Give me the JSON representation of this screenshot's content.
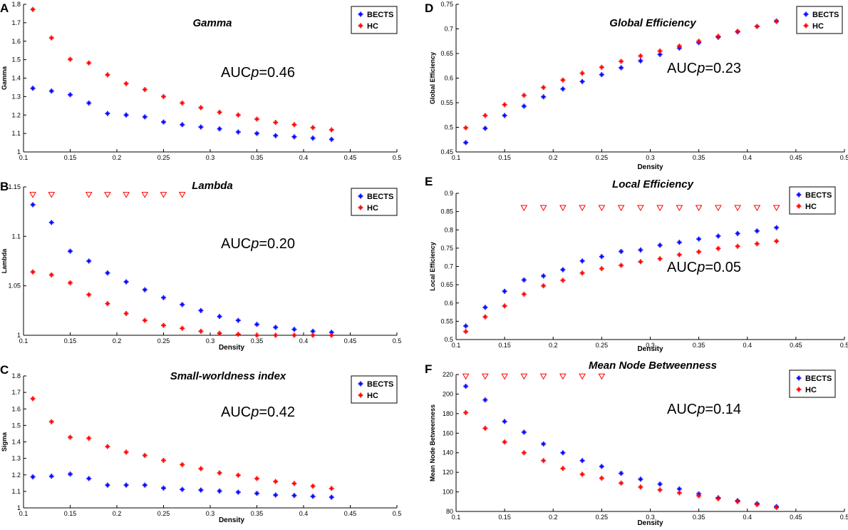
{
  "figure": {
    "colors": {
      "becats": "#0000ff",
      "hc": "#ff0000",
      "axis": "#000000",
      "legend_border": "#000000"
    },
    "icon_names": {
      "series_marker": "plus-star-marker",
      "significance_marker": "down-triangle-marker"
    }
  },
  "chart_data": [
    {
      "panel_letter": "A",
      "type": "scatter",
      "title": "Gamma",
      "xlabel": "",
      "ylabel": "Gamma",
      "xlim": [
        0.1,
        0.5
      ],
      "ylim": [
        1.0,
        1.8
      ],
      "xticks": [
        "0.1",
        "0.15",
        "0.2",
        "0.25",
        "0.3",
        "0.35",
        "0.4",
        "0.45",
        "0.5"
      ],
      "yticks": [
        "1",
        "1.1",
        "1.2",
        "1.3",
        "1.4",
        "1.5",
        "1.6",
        "1.7",
        "1.8"
      ],
      "annotation": {
        "prefix": "AUC",
        "italic": "p",
        "suffix": "=0.46"
      },
      "legend": [
        "BECTS",
        "HC"
      ],
      "x": [
        0.11,
        0.13,
        0.15,
        0.17,
        0.19,
        0.21,
        0.23,
        0.25,
        0.27,
        0.29,
        0.31,
        0.33,
        0.35,
        0.37,
        0.39,
        0.41,
        0.43
      ],
      "series": [
        {
          "name": "BECTS",
          "values": [
            1.345,
            1.33,
            1.31,
            1.265,
            1.208,
            1.2,
            1.19,
            1.162,
            1.148,
            1.135,
            1.125,
            1.108,
            1.1,
            1.088,
            1.082,
            1.075,
            1.068
          ]
        },
        {
          "name": "HC",
          "values": [
            1.772,
            1.618,
            1.502,
            1.482,
            1.418,
            1.37,
            1.338,
            1.3,
            1.265,
            1.24,
            1.215,
            1.2,
            1.178,
            1.16,
            1.148,
            1.132,
            1.12
          ]
        }
      ],
      "significant_x": []
    },
    {
      "panel_letter": "B",
      "type": "scatter",
      "title": "Lambda",
      "xlabel": "Density",
      "ylabel": "Lambda",
      "xlim": [
        0.1,
        0.5
      ],
      "ylim": [
        1.0,
        1.15
      ],
      "xticks": [
        "0.1",
        "0.15",
        "0.2",
        "0.25",
        "0.3",
        "0.35",
        "0.4",
        "0.45",
        "0.5"
      ],
      "yticks": [
        "1",
        "1.05",
        "1.1",
        "1.15"
      ],
      "annotation": {
        "prefix": "AUC",
        "italic": "p",
        "suffix": "=0.20"
      },
      "legend": [
        "BECTS",
        "HC"
      ],
      "x": [
        0.11,
        0.13,
        0.15,
        0.17,
        0.19,
        0.21,
        0.23,
        0.25,
        0.27,
        0.29,
        0.31,
        0.33,
        0.35,
        0.37,
        0.39,
        0.41,
        0.43
      ],
      "series": [
        {
          "name": "BECTS",
          "values": [
            1.132,
            1.114,
            1.085,
            1.075,
            1.063,
            1.054,
            1.046,
            1.038,
            1.031,
            1.025,
            1.019,
            1.015,
            1.011,
            1.008,
            1.006,
            1.004,
            1.003
          ]
        },
        {
          "name": "HC",
          "values": [
            1.064,
            1.061,
            1.053,
            1.041,
            1.032,
            1.022,
            1.015,
            1.01,
            1.007,
            1.004,
            1.002,
            1.001,
            1.0,
            1.0,
            1.0,
            1.0,
            1.0
          ]
        }
      ],
      "significant_x": [
        0.11,
        0.13,
        0.17,
        0.19,
        0.21,
        0.23,
        0.25,
        0.27
      ],
      "significant_y": 1.142
    },
    {
      "panel_letter": "C",
      "type": "scatter",
      "title": "Small-worldness index",
      "xlabel": "Density",
      "ylabel": "Sigma",
      "xlim": [
        0.1,
        0.5
      ],
      "ylim": [
        1.0,
        1.8
      ],
      "xticks": [
        "0.1",
        "0.15",
        "0.2",
        "0.25",
        "0.3",
        "0.35",
        "0.4",
        "0.45",
        "0.5"
      ],
      "yticks": [
        "1",
        "1.1",
        "1.2",
        "1.3",
        "1.4",
        "1.5",
        "1.6",
        "1.7",
        "1.8"
      ],
      "annotation": {
        "prefix": "AUC",
        "italic": "p",
        "suffix": "=0.42"
      },
      "legend": [
        "BECTS",
        "HC"
      ],
      "x": [
        0.11,
        0.13,
        0.15,
        0.17,
        0.19,
        0.21,
        0.23,
        0.25,
        0.27,
        0.29,
        0.31,
        0.33,
        0.35,
        0.37,
        0.39,
        0.41,
        0.43
      ],
      "series": [
        {
          "name": "BECTS",
          "values": [
            1.188,
            1.192,
            1.205,
            1.178,
            1.138,
            1.138,
            1.138,
            1.12,
            1.112,
            1.108,
            1.102,
            1.095,
            1.088,
            1.078,
            1.075,
            1.07,
            1.065
          ]
        },
        {
          "name": "HC",
          "values": [
            1.662,
            1.522,
            1.428,
            1.422,
            1.372,
            1.338,
            1.318,
            1.288,
            1.262,
            1.238,
            1.212,
            1.198,
            1.178,
            1.16,
            1.148,
            1.132,
            1.118
          ]
        }
      ],
      "significant_x": []
    },
    {
      "panel_letter": "D",
      "type": "scatter",
      "title": "Global Efficiency",
      "xlabel": "Density",
      "ylabel": "Global Efficiency",
      "xlim": [
        0.1,
        0.5
      ],
      "ylim": [
        0.45,
        0.75
      ],
      "xticks": [
        "0.1",
        "0.15",
        "0.2",
        "0.25",
        "0.3",
        "0.35",
        "0.4",
        "0.45",
        "0.5"
      ],
      "yticks": [
        "0.45",
        "0.5",
        "0.55",
        "0.6",
        "0.65",
        "0.7",
        "0.75"
      ],
      "annotation": {
        "prefix": "AUC",
        "italic": "p",
        "suffix": "=0.23"
      },
      "legend": [
        "BECTS",
        "HC"
      ],
      "x": [
        0.11,
        0.13,
        0.15,
        0.17,
        0.19,
        0.21,
        0.23,
        0.25,
        0.27,
        0.29,
        0.31,
        0.33,
        0.35,
        0.37,
        0.39,
        0.41,
        0.43
      ],
      "series": [
        {
          "name": "BECTS",
          "values": [
            0.469,
            0.498,
            0.524,
            0.543,
            0.562,
            0.578,
            0.593,
            0.607,
            0.621,
            0.635,
            0.648,
            0.661,
            0.672,
            0.683,
            0.694,
            0.705,
            0.716
          ]
        },
        {
          "name": "HC",
          "values": [
            0.499,
            0.524,
            0.546,
            0.565,
            0.581,
            0.596,
            0.61,
            0.622,
            0.634,
            0.645,
            0.655,
            0.665,
            0.675,
            0.685,
            0.695,
            0.705,
            0.715
          ]
        }
      ],
      "significant_x": []
    },
    {
      "panel_letter": "E",
      "type": "scatter",
      "title": "Local Efficiency",
      "xlabel": "Density",
      "ylabel": "Local Efficiency",
      "xlim": [
        0.1,
        0.5
      ],
      "ylim": [
        0.5,
        0.9
      ],
      "xticks": [
        "0.1",
        "0.15",
        "0.2",
        "0.25",
        "0.3",
        "0.35",
        "0.4",
        "0.45",
        "0.5"
      ],
      "yticks": [
        "0.5",
        "0.55",
        "0.6",
        "0.65",
        "0.7",
        "0.75",
        "0.8",
        "0.85",
        "0.9"
      ],
      "annotation": {
        "prefix": "AUC",
        "italic": "p",
        "suffix": "=0.05"
      },
      "legend": [
        "BECTS",
        "HC"
      ],
      "x": [
        0.11,
        0.13,
        0.15,
        0.17,
        0.19,
        0.21,
        0.23,
        0.25,
        0.27,
        0.29,
        0.31,
        0.33,
        0.35,
        0.37,
        0.39,
        0.41,
        0.43
      ],
      "series": [
        {
          "name": "BECTS",
          "values": [
            0.537,
            0.588,
            0.632,
            0.663,
            0.674,
            0.691,
            0.715,
            0.727,
            0.741,
            0.745,
            0.758,
            0.766,
            0.775,
            0.783,
            0.79,
            0.797,
            0.806
          ]
        },
        {
          "name": "HC",
          "values": [
            0.522,
            0.562,
            0.592,
            0.624,
            0.647,
            0.662,
            0.682,
            0.694,
            0.703,
            0.713,
            0.721,
            0.732,
            0.74,
            0.749,
            0.755,
            0.762,
            0.769
          ]
        }
      ],
      "significant_x": [
        0.17,
        0.19,
        0.21,
        0.23,
        0.25,
        0.27,
        0.29,
        0.31,
        0.33,
        0.35,
        0.37,
        0.39,
        0.41,
        0.43
      ],
      "significant_y": 0.86
    },
    {
      "panel_letter": "F",
      "type": "scatter",
      "title": "Mean Node Betweenness",
      "xlabel": "Density",
      "ylabel": "Mean Node Betweenness",
      "xlim": [
        0.1,
        0.5
      ],
      "ylim": [
        80,
        220
      ],
      "xticks": [
        "0.1",
        "0.15",
        "0.2",
        "0.25",
        "0.3",
        "0.35",
        "0.4",
        "0.45",
        "0.5"
      ],
      "yticks": [
        "80",
        "100",
        "120",
        "140",
        "160",
        "180",
        "200",
        "220"
      ],
      "annotation": {
        "prefix": "AUC",
        "italic": "p",
        "suffix": "=0.14"
      },
      "legend": [
        "BECTS",
        "HC"
      ],
      "x": [
        0.11,
        0.13,
        0.15,
        0.17,
        0.19,
        0.21,
        0.23,
        0.25,
        0.27,
        0.29,
        0.31,
        0.33,
        0.35,
        0.37,
        0.39,
        0.41,
        0.43
      ],
      "series": [
        {
          "name": "BECTS",
          "values": [
            208,
            194,
            172,
            161,
            149,
            140,
            132,
            126,
            119,
            113,
            108,
            103,
            98,
            94,
            91,
            88,
            85
          ]
        },
        {
          "name": "HC",
          "values": [
            181,
            165,
            151,
            140,
            132,
            124,
            118,
            114,
            109,
            105,
            102,
            99,
            96,
            93,
            90,
            87,
            84
          ]
        }
      ],
      "significant_x": [
        0.11,
        0.13,
        0.15,
        0.17,
        0.19,
        0.21,
        0.23,
        0.25
      ],
      "significant_y": 218
    }
  ]
}
